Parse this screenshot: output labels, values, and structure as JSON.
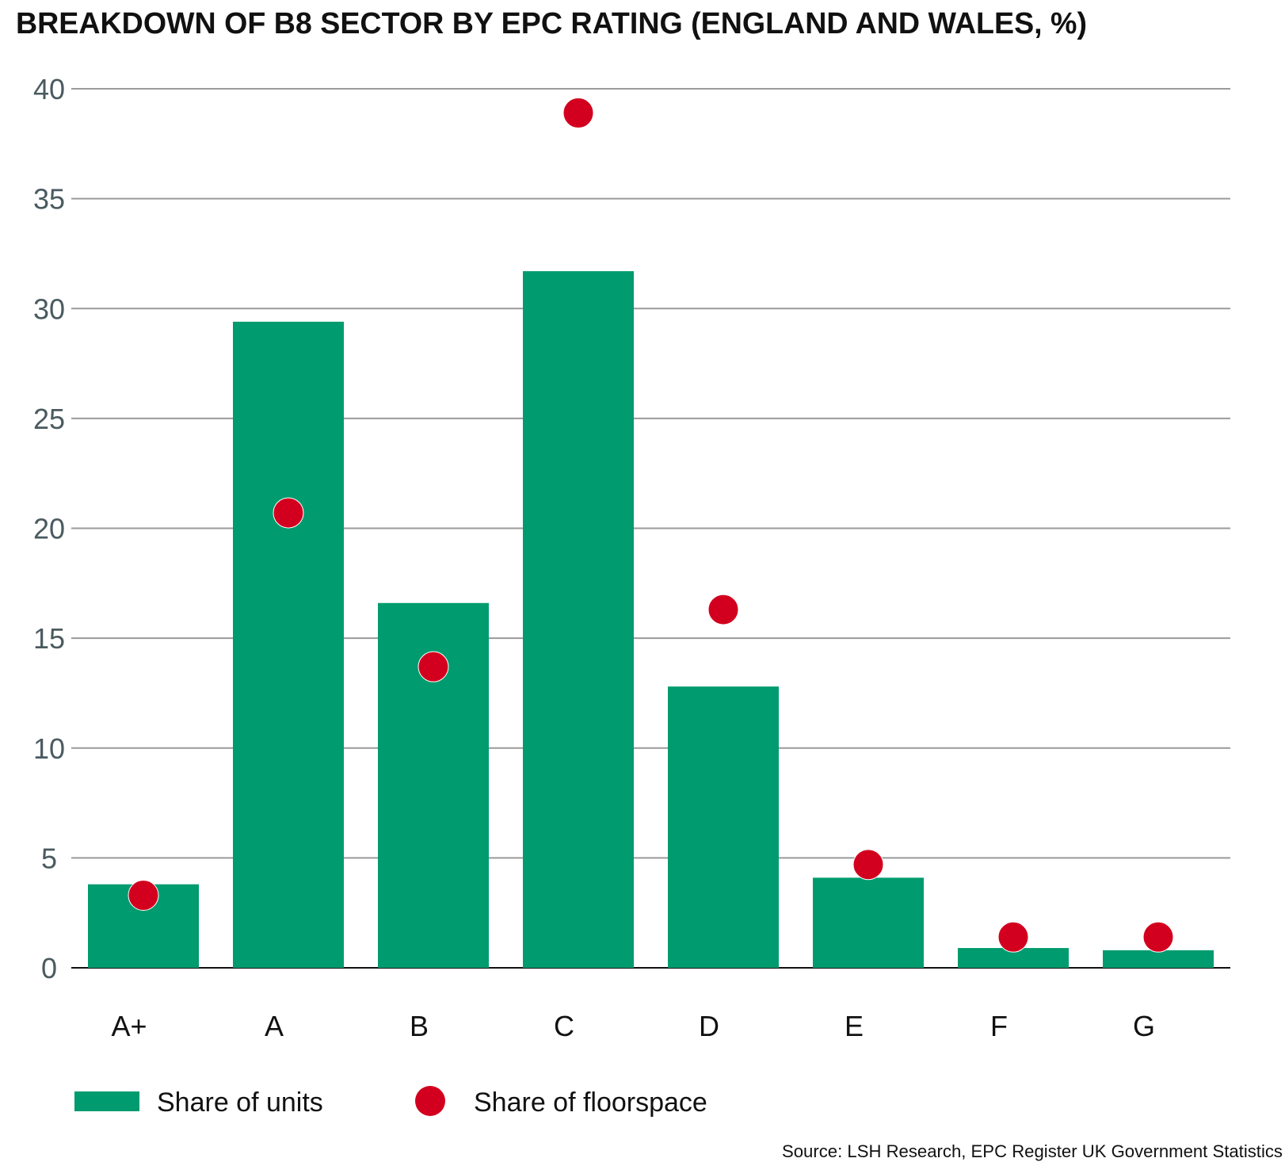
{
  "chart_data": {
    "type": "bar",
    "title": "BREAKDOWN OF B8 SECTOR BY EPC RATING (ENGLAND AND WALES, %)",
    "categories": [
      "A+",
      "A",
      "B",
      "C",
      "D",
      "E",
      "F",
      "G"
    ],
    "series": [
      {
        "name": "Share of units",
        "kind": "bar",
        "color": "#009b6e",
        "values": [
          3.8,
          29.4,
          16.6,
          31.7,
          12.8,
          4.1,
          0.9,
          0.8
        ]
      },
      {
        "name": "Share of floorspace",
        "kind": "dot",
        "color": "#d2001e",
        "values": [
          3.3,
          20.7,
          13.7,
          38.9,
          16.3,
          4.7,
          1.4,
          1.4
        ]
      }
    ],
    "ylim": [
      0,
      40
    ],
    "yticks": [
      0,
      5,
      10,
      15,
      20,
      25,
      30,
      35,
      40
    ],
    "grid": true,
    "legend_position": "bottom-left",
    "source": "Source: LSH Research, EPC Register UK Government Statistics"
  }
}
